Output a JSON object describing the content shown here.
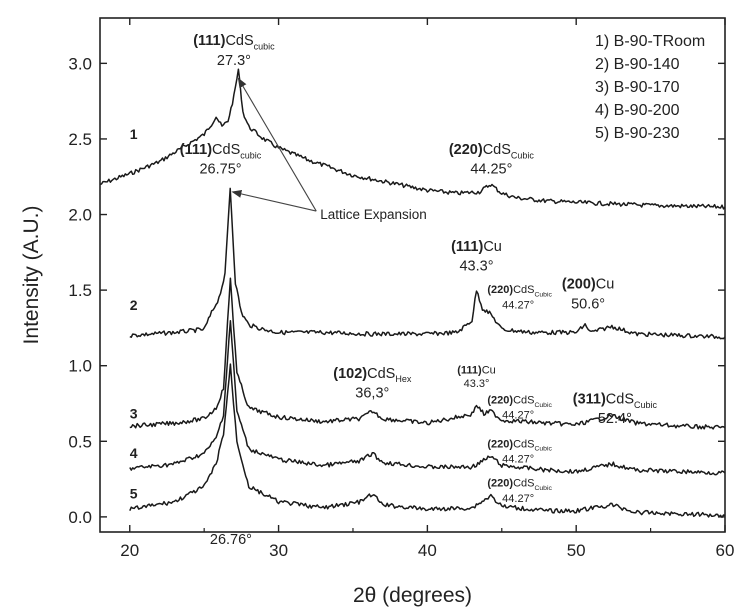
{
  "chart_data": {
    "type": "line",
    "xlabel": "2θ (degrees)",
    "ylabel": "Intensity (A.U.)",
    "xlim": [
      18,
      60
    ],
    "ylim": [
      -0.1,
      3.3
    ],
    "xticks": [
      20,
      30,
      40,
      50,
      60
    ],
    "yticks": [
      0.0,
      0.5,
      1.0,
      1.5,
      2.0,
      2.5,
      3.0
    ],
    "ytick_labels": [
      "0.0",
      "0.5",
      "1.0",
      "1.5",
      "2.0",
      "2.5",
      "3.0"
    ],
    "legend": {
      "placement": "top-right",
      "entries": [
        "1) B-90-TRoom",
        "2) B-90-140",
        "3) B-90-170",
        "4) B-90-200",
        "5) B-90-230"
      ]
    },
    "series": [
      {
        "name": "1",
        "label": "1",
        "label_x": 20.0,
        "label_y": 2.5,
        "x": [
          18,
          20,
          22,
          24,
          25,
          25.5,
          25.8,
          26.2,
          26.6,
          27.0,
          27.3,
          27.6,
          28,
          29,
          30,
          32,
          35,
          38,
          40,
          42,
          43.5,
          44.25,
          45,
          46,
          48,
          50,
          55,
          60
        ],
        "y": [
          2.2,
          2.27,
          2.35,
          2.47,
          2.53,
          2.6,
          2.65,
          2.58,
          2.62,
          2.78,
          2.96,
          2.68,
          2.58,
          2.5,
          2.44,
          2.36,
          2.26,
          2.2,
          2.16,
          2.14,
          2.15,
          2.2,
          2.14,
          2.11,
          2.09,
          2.08,
          2.06,
          2.05
        ]
      },
      {
        "name": "2",
        "label": "2",
        "label_x": 20.0,
        "label_y": 1.37,
        "x": [
          20,
          23,
          25,
          25.5,
          26.0,
          26.4,
          26.75,
          27.1,
          27.5,
          28,
          29,
          30,
          33,
          36,
          40,
          42,
          43.0,
          43.3,
          43.7,
          44.27,
          45,
          47,
          50,
          50.6,
          51,
          52.4,
          54,
          57,
          60
        ],
        "y": [
          1.2,
          1.22,
          1.24,
          1.35,
          1.45,
          1.6,
          2.18,
          1.55,
          1.35,
          1.27,
          1.24,
          1.22,
          1.22,
          1.21,
          1.21,
          1.22,
          1.3,
          1.5,
          1.38,
          1.34,
          1.24,
          1.22,
          1.22,
          1.27,
          1.22,
          1.26,
          1.21,
          1.2,
          1.19
        ]
      },
      {
        "name": "3",
        "label": "3",
        "label_x": 20.0,
        "label_y": 0.65,
        "x": [
          20,
          23,
          25,
          25.8,
          26.3,
          26.76,
          27.2,
          28,
          30,
          33,
          35.5,
          36.3,
          37,
          40,
          43.0,
          43.3,
          43.8,
          44.27,
          45,
          48,
          50,
          52.4,
          54,
          57,
          60
        ],
        "y": [
          0.6,
          0.62,
          0.65,
          0.72,
          0.85,
          1.58,
          0.95,
          0.72,
          0.66,
          0.63,
          0.65,
          0.7,
          0.65,
          0.62,
          0.68,
          0.74,
          0.68,
          0.7,
          0.64,
          0.62,
          0.61,
          0.67,
          0.62,
          0.6,
          0.59
        ]
      },
      {
        "name": "4",
        "label": "4",
        "label_x": 20.0,
        "label_y": 0.39,
        "x": [
          20,
          23,
          25,
          25.8,
          26.3,
          26.76,
          27.2,
          28,
          30,
          33,
          35.5,
          36.3,
          37,
          40,
          43,
          44.27,
          45,
          48,
          50,
          52.4,
          54,
          57,
          60
        ],
        "y": [
          0.32,
          0.35,
          0.42,
          0.52,
          0.68,
          1.3,
          0.7,
          0.45,
          0.38,
          0.34,
          0.37,
          0.42,
          0.36,
          0.33,
          0.33,
          0.4,
          0.34,
          0.31,
          0.3,
          0.35,
          0.31,
          0.3,
          0.29
        ]
      },
      {
        "name": "5",
        "label": "5",
        "label_x": 20.0,
        "label_y": 0.12,
        "x": [
          20,
          23,
          25,
          25.8,
          26.3,
          26.76,
          27.2,
          28,
          30,
          33,
          35.5,
          36.3,
          37,
          40,
          43,
          44.27,
          45,
          48,
          50,
          52.4,
          54,
          57,
          60
        ],
        "y": [
          0.05,
          0.1,
          0.2,
          0.35,
          0.55,
          1.0,
          0.5,
          0.2,
          0.1,
          0.06,
          0.1,
          0.15,
          0.08,
          0.05,
          0.06,
          0.14,
          0.07,
          0.04,
          0.04,
          0.08,
          0.03,
          0.02,
          0.01
        ]
      }
    ],
    "annotations": [
      {
        "bold": "(111)",
        "text": "CdS",
        "sub": "cubic",
        "x": 27.0,
        "y": 3.12,
        "size": "large"
      },
      {
        "bold": "",
        "text": "27.3°",
        "sub": "",
        "x": 27.0,
        "y": 2.99,
        "size": "large"
      },
      {
        "bold": "(111)",
        "text": "CdS",
        "sub": "cubic",
        "x": 26.1,
        "y": 2.4,
        "size": "large"
      },
      {
        "bold": "",
        "text": "26.75°",
        "sub": "",
        "x": 26.1,
        "y": 2.27,
        "size": "large"
      },
      {
        "bold": "(220)",
        "text": "CdS",
        "sub": "Cubic",
        "x": 44.3,
        "y": 2.4,
        "size": "large"
      },
      {
        "bold": "",
        "text": "44.25°",
        "sub": "",
        "x": 44.3,
        "y": 2.27,
        "size": "large"
      },
      {
        "bold": "(111)",
        "text": "Cu",
        "sub": "",
        "x": 43.3,
        "y": 1.76,
        "size": "large"
      },
      {
        "bold": "",
        "text": "43.3°",
        "sub": "",
        "x": 43.3,
        "y": 1.63,
        "size": "large"
      },
      {
        "bold": "(220)",
        "text": "CdS",
        "sub": "Cubic",
        "x": 46.2,
        "y": 1.48,
        "size": "small"
      },
      {
        "bold": "",
        "text": "44.27°",
        "sub": "",
        "x": 46.1,
        "y": 1.38,
        "size": "small"
      },
      {
        "bold": "(200)",
        "text": "Cu",
        "sub": "",
        "x": 50.8,
        "y": 1.51,
        "size": "large"
      },
      {
        "bold": "",
        "text": "50.6°",
        "sub": "",
        "x": 50.8,
        "y": 1.38,
        "size": "large"
      },
      {
        "bold": "(102)",
        "text": "CdS",
        "sub": "Hex",
        "x": 36.3,
        "y": 0.92,
        "size": "large"
      },
      {
        "bold": "",
        "text": "36,3°",
        "sub": "",
        "x": 36.3,
        "y": 0.79,
        "size": "large"
      },
      {
        "bold": "(111)",
        "text": "Cu",
        "sub": "",
        "x": 43.3,
        "y": 0.95,
        "size": "small"
      },
      {
        "bold": "",
        "text": "43.3°",
        "sub": "",
        "x": 43.3,
        "y": 0.86,
        "size": "small"
      },
      {
        "bold": "(220)",
        "text": "CdS",
        "sub": "Cubic",
        "x": 46.2,
        "y": 0.75,
        "size": "small"
      },
      {
        "bold": "",
        "text": "44.27°",
        "sub": "",
        "x": 46.1,
        "y": 0.65,
        "size": "small"
      },
      {
        "bold": "(311)",
        "text": "CdS",
        "sub": "Cubic",
        "x": 52.6,
        "y": 0.75,
        "size": "large"
      },
      {
        "bold": "",
        "text": "52.4°",
        "sub": "",
        "x": 52.6,
        "y": 0.62,
        "size": "large"
      },
      {
        "bold": "(220)",
        "text": "CdS",
        "sub": "Cubic",
        "x": 46.2,
        "y": 0.46,
        "size": "small"
      },
      {
        "bold": "",
        "text": "44.27°",
        "sub": "",
        "x": 46.1,
        "y": 0.36,
        "size": "small"
      },
      {
        "bold": "(220)",
        "text": "CdS",
        "sub": "Cubic",
        "x": 46.2,
        "y": 0.2,
        "size": "small"
      },
      {
        "bold": "",
        "text": "44.27°",
        "sub": "",
        "x": 46.1,
        "y": 0.1,
        "size": "small"
      },
      {
        "bold": "",
        "text": "26.76°",
        "sub": "",
        "x": 26.8,
        "y": -0.18,
        "size": "large"
      }
    ],
    "arrow_annotation": {
      "text": "Lattice Expansion",
      "text_x": 32.8,
      "text_y": 1.97,
      "targets": [
        {
          "x": 27.3,
          "y": 2.9
        },
        {
          "x": 26.9,
          "y": 2.15
        }
      ]
    }
  }
}
